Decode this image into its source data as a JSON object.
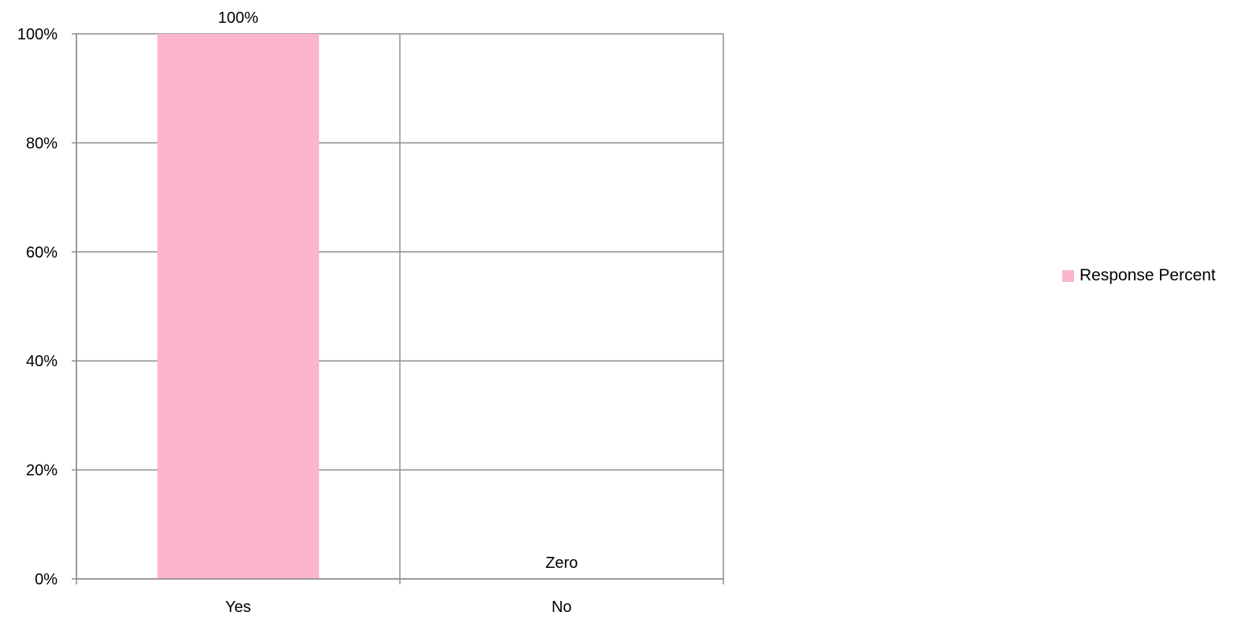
{
  "chart_data": {
    "type": "bar",
    "categories": [
      "Yes",
      "No"
    ],
    "series": [
      {
        "name": "Response Percent",
        "values": [
          100,
          0
        ],
        "color": "#FBB6CE"
      }
    ],
    "data_labels": [
      "100%",
      "Zero"
    ],
    "ylim": [
      0,
      100
    ],
    "yticks": [
      0,
      20,
      40,
      60,
      80,
      100
    ],
    "ytick_labels": [
      "0%",
      "20%",
      "40%",
      "60%",
      "80%",
      "100%"
    ],
    "title": "",
    "xlabel": "",
    "ylabel": "",
    "grid": true,
    "legend_position": "right"
  }
}
